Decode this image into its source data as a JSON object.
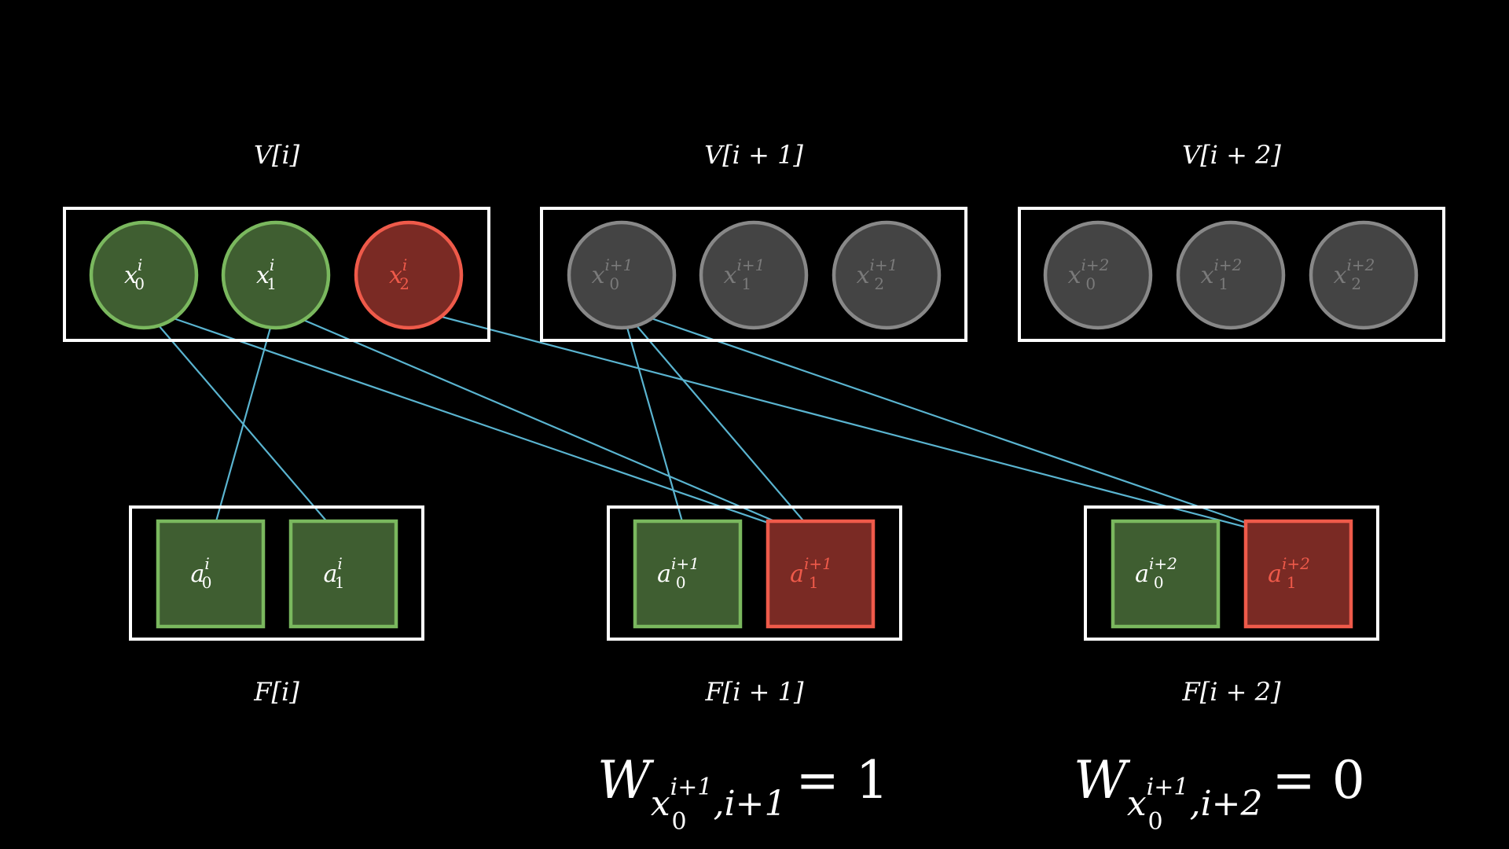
{
  "colors": {
    "background": "#000000",
    "frame": "#ffffff",
    "edge": "#5ab4d0",
    "active_fill": "#3f5e31",
    "active_stroke": "#7ab85e",
    "conflict_fill": "#7a2a24",
    "conflict_stroke": "#ef5a4a",
    "conflict_text": "#ef5a4a",
    "inactive_fill": "#444444",
    "inactive_stroke": "#888888",
    "inactive_text": "#7a7a7a",
    "text": "#ffffff"
  },
  "var_groups": [
    {
      "label": "V[i]",
      "nodes": [
        {
          "base": "x",
          "sub": "0",
          "sup": "i",
          "state": "active"
        },
        {
          "base": "x",
          "sub": "1",
          "sup": "i",
          "state": "active"
        },
        {
          "base": "x",
          "sub": "2",
          "sup": "i",
          "state": "conflict"
        }
      ]
    },
    {
      "label": "V[i + 1]",
      "nodes": [
        {
          "base": "x",
          "sub": "0",
          "sup": "i+1",
          "state": "inactive"
        },
        {
          "base": "x",
          "sub": "1",
          "sup": "i+1",
          "state": "inactive"
        },
        {
          "base": "x",
          "sub": "2",
          "sup": "i+1",
          "state": "inactive"
        }
      ]
    },
    {
      "label": "V[i + 2]",
      "nodes": [
        {
          "base": "x",
          "sub": "0",
          "sup": "i+2",
          "state": "inactive"
        },
        {
          "base": "x",
          "sub": "1",
          "sup": "i+2",
          "state": "inactive"
        },
        {
          "base": "x",
          "sub": "2",
          "sup": "i+2",
          "state": "inactive"
        }
      ]
    }
  ],
  "factor_groups": [
    {
      "label": "F[i]",
      "nodes": [
        {
          "base": "a",
          "sub": "0",
          "sup": "i",
          "state": "active"
        },
        {
          "base": "a",
          "sub": "1",
          "sup": "i",
          "state": "active"
        }
      ]
    },
    {
      "label": "F[i + 1]",
      "nodes": [
        {
          "base": "a",
          "sub": "0",
          "sup": "i+1",
          "state": "active"
        },
        {
          "base": "a",
          "sub": "1",
          "sup": "i+1",
          "state": "conflict"
        }
      ]
    },
    {
      "label": "F[i + 2]",
      "nodes": [
        {
          "base": "a",
          "sub": "0",
          "sup": "i+2",
          "state": "active"
        },
        {
          "base": "a",
          "sub": "1",
          "sup": "i+2",
          "state": "conflict"
        }
      ]
    }
  ],
  "edges": [
    {
      "from": {
        "group": 0,
        "node": 0
      },
      "to": {
        "group": 0,
        "node": 1
      }
    },
    {
      "from": {
        "group": 0,
        "node": 1
      },
      "to": {
        "group": 0,
        "node": 0
      }
    },
    {
      "from": {
        "group": 0,
        "node": 0
      },
      "to": {
        "group": 1,
        "node": 1
      }
    },
    {
      "from": {
        "group": 0,
        "node": 1
      },
      "to": {
        "group": 1,
        "node": 1
      }
    },
    {
      "from": {
        "group": 1,
        "node": 0
      },
      "to": {
        "group": 1,
        "node": 0
      }
    },
    {
      "from": {
        "group": 1,
        "node": 0
      },
      "to": {
        "group": 1,
        "node": 1
      }
    },
    {
      "from": {
        "group": 0,
        "node": 2
      },
      "to": {
        "group": 2,
        "node": 1
      }
    },
    {
      "from": {
        "group": 1,
        "node": 0
      },
      "to": {
        "group": 2,
        "node": 1
      }
    }
  ],
  "equations": [
    {
      "W": "W",
      "sub_base": "x",
      "sub_sub": "0",
      "sub_sup": "i+1",
      "sub_tail": ",i+1",
      "rest": "= 1"
    },
    {
      "W": "W",
      "sub_base": "x",
      "sub_sub": "0",
      "sub_sup": "i+1",
      "sub_tail": ",i+2",
      "rest": "= 0"
    }
  ]
}
